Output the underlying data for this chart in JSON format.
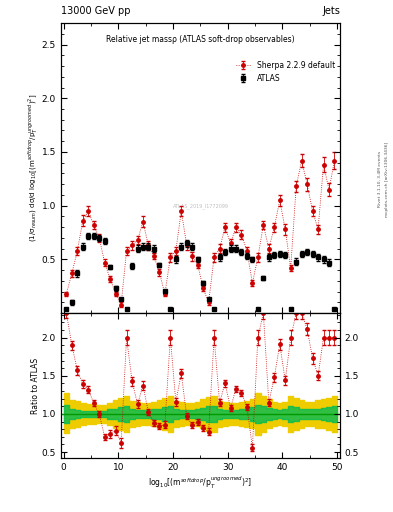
{
  "title_left": "13000 GeV pp",
  "title_right": "Jets",
  "plot_title": "Relative jet massρ (ATLAS soft-drop observables)",
  "ylabel_main": "(1/σ$_{resum}$) dσ/d log$_{10}$[(m$^{soft drop}$/p$_T^{ungroomed}$)$^2$]",
  "ylabel_ratio": "Ratio to ATLAS",
  "xlabel": "log$_{10}$[(m$^{soft drop}$/p$_T^{ungroomed}$)$^2$]",
  "right_label_top": "Rivet 3.1.10, 3.4M events",
  "right_label_bot": "mcplots.cern.ch [arXiv:1306.3436]",
  "watermark": "ATLAS_2019_I1772099",
  "legend_atlas": "ATLAS",
  "legend_sherpa": "Sherpa 2.2.9 default",
  "xlim": [
    -0.5,
    50.5
  ],
  "ylim_main": [
    0.0,
    2.7
  ],
  "ylim_ratio": [
    0.42,
    2.32
  ],
  "yticks_main": [
    0.5,
    1.0,
    1.5,
    2.0,
    2.5
  ],
  "yticks_ratio": [
    0.5,
    1.0,
    1.5,
    2.0
  ],
  "xticks": [
    0,
    10,
    20,
    30,
    40,
    50
  ],
  "atlas_x": [
    0.5,
    1.5,
    2.5,
    3.5,
    4.5,
    5.5,
    6.5,
    7.5,
    8.5,
    9.5,
    10.5,
    11.5,
    12.5,
    13.5,
    14.5,
    15.5,
    16.5,
    17.5,
    18.5,
    19.5,
    20.5,
    21.5,
    22.5,
    23.5,
    24.5,
    25.5,
    26.5,
    27.5,
    28.5,
    29.5,
    30.5,
    31.5,
    32.5,
    33.5,
    34.5,
    35.5,
    36.5,
    37.5,
    38.5,
    39.5,
    40.5,
    41.5,
    42.5,
    43.5,
    44.5,
    45.5,
    46.5,
    47.5,
    48.5,
    49.5
  ],
  "atlas_y": [
    0.04,
    0.1,
    0.37,
    0.62,
    0.72,
    0.72,
    0.7,
    0.67,
    0.43,
    0.23,
    0.13,
    0.04,
    0.44,
    0.6,
    0.62,
    0.62,
    0.6,
    0.45,
    0.21,
    0.04,
    0.5,
    0.62,
    0.65,
    0.62,
    0.5,
    0.28,
    0.13,
    0.04,
    0.52,
    0.57,
    0.6,
    0.6,
    0.57,
    0.53,
    0.5,
    0.04,
    0.33,
    0.52,
    0.54,
    0.55,
    0.54,
    0.04,
    0.48,
    0.55,
    0.57,
    0.55,
    0.52,
    0.5,
    0.47,
    0.04
  ],
  "atlas_yerr": [
    0.01,
    0.02,
    0.03,
    0.03,
    0.03,
    0.03,
    0.03,
    0.03,
    0.02,
    0.02,
    0.01,
    0.01,
    0.03,
    0.03,
    0.03,
    0.03,
    0.03,
    0.02,
    0.01,
    0.01,
    0.03,
    0.03,
    0.03,
    0.03,
    0.02,
    0.02,
    0.01,
    0.01,
    0.03,
    0.03,
    0.03,
    0.03,
    0.03,
    0.03,
    0.02,
    0.01,
    0.02,
    0.03,
    0.03,
    0.03,
    0.03,
    0.01,
    0.03,
    0.03,
    0.03,
    0.03,
    0.03,
    0.03,
    0.03,
    0.01
  ],
  "sherpa_x": [
    0.5,
    1.5,
    2.5,
    3.5,
    4.5,
    5.5,
    6.5,
    7.5,
    8.5,
    9.5,
    10.5,
    11.5,
    12.5,
    13.5,
    14.5,
    15.5,
    16.5,
    17.5,
    18.5,
    19.5,
    20.5,
    21.5,
    22.5,
    23.5,
    24.5,
    25.5,
    26.5,
    27.5,
    28.5,
    29.5,
    30.5,
    31.5,
    32.5,
    33.5,
    34.5,
    35.5,
    36.5,
    37.5,
    38.5,
    39.5,
    40.5,
    41.5,
    42.5,
    43.5,
    44.5,
    45.5,
    46.5,
    47.5,
    48.5,
    49.5
  ],
  "sherpa_y": [
    0.18,
    0.37,
    0.58,
    0.86,
    0.95,
    0.82,
    0.7,
    0.47,
    0.32,
    0.18,
    0.08,
    0.58,
    0.63,
    0.68,
    0.85,
    0.63,
    0.53,
    0.38,
    0.18,
    0.52,
    0.58,
    0.95,
    0.63,
    0.53,
    0.45,
    0.23,
    0.1,
    0.52,
    0.6,
    0.8,
    0.65,
    0.8,
    0.73,
    0.58,
    0.28,
    0.52,
    0.82,
    0.6,
    0.8,
    1.05,
    0.78,
    0.42,
    1.18,
    1.42,
    1.2,
    0.95,
    0.78,
    1.38,
    1.15,
    1.42
  ],
  "sherpa_yerr": [
    0.02,
    0.03,
    0.04,
    0.05,
    0.05,
    0.04,
    0.04,
    0.03,
    0.03,
    0.02,
    0.02,
    0.04,
    0.04,
    0.04,
    0.05,
    0.04,
    0.03,
    0.03,
    0.02,
    0.04,
    0.04,
    0.05,
    0.04,
    0.04,
    0.03,
    0.02,
    0.02,
    0.04,
    0.04,
    0.04,
    0.04,
    0.04,
    0.04,
    0.04,
    0.03,
    0.04,
    0.04,
    0.04,
    0.04,
    0.05,
    0.05,
    0.03,
    0.05,
    0.06,
    0.06,
    0.05,
    0.04,
    0.07,
    0.06,
    0.08
  ],
  "ratio_y": [
    2.5,
    1.9,
    1.57,
    1.39,
    1.32,
    1.14,
    1.0,
    0.7,
    0.74,
    0.78,
    0.62,
    2.0,
    1.43,
    1.13,
    1.37,
    1.02,
    0.88,
    0.84,
    0.86,
    2.0,
    1.16,
    1.53,
    0.97,
    0.85,
    0.9,
    0.82,
    0.77,
    2.0,
    1.15,
    1.4,
    1.08,
    1.33,
    1.28,
    1.09,
    0.56,
    2.0,
    2.48,
    1.15,
    1.48,
    1.91,
    1.44,
    2.0,
    2.46,
    2.58,
    2.11,
    1.73,
    1.5,
    2.0,
    2.0,
    2.0
  ],
  "ratio_yerr": [
    0.06,
    0.06,
    0.06,
    0.05,
    0.05,
    0.04,
    0.04,
    0.04,
    0.05,
    0.06,
    0.06,
    0.1,
    0.06,
    0.05,
    0.06,
    0.04,
    0.04,
    0.04,
    0.05,
    0.1,
    0.05,
    0.06,
    0.04,
    0.04,
    0.04,
    0.04,
    0.05,
    0.1,
    0.05,
    0.05,
    0.04,
    0.04,
    0.04,
    0.04,
    0.05,
    0.1,
    0.07,
    0.05,
    0.06,
    0.07,
    0.06,
    0.1,
    0.07,
    0.08,
    0.08,
    0.07,
    0.06,
    0.1,
    0.1,
    0.1
  ],
  "green_band_x": [
    0,
    1,
    2,
    3,
    4,
    5,
    6,
    7,
    8,
    9,
    10,
    11,
    12,
    13,
    14,
    15,
    16,
    17,
    18,
    19,
    20,
    21,
    22,
    23,
    24,
    25,
    26,
    27,
    28,
    29,
    30,
    31,
    32,
    33,
    34,
    35,
    36,
    37,
    38,
    39,
    40,
    41,
    42,
    43,
    44,
    45,
    46,
    47,
    48,
    49,
    50
  ],
  "green_lo": [
    0.88,
    0.94,
    0.95,
    0.96,
    0.96,
    0.96,
    0.96,
    0.96,
    0.94,
    0.93,
    0.91,
    0.9,
    0.94,
    0.95,
    0.95,
    0.95,
    0.94,
    0.93,
    0.91,
    0.9,
    0.94,
    0.95,
    0.95,
    0.95,
    0.94,
    0.92,
    0.9,
    0.9,
    0.94,
    0.95,
    0.95,
    0.95,
    0.94,
    0.93,
    0.91,
    0.88,
    0.9,
    0.92,
    0.94,
    0.95,
    0.94,
    0.9,
    0.91,
    0.93,
    0.94,
    0.94,
    0.93,
    0.92,
    0.91,
    0.9,
    0.9
  ],
  "green_hi": [
    1.12,
    1.06,
    1.05,
    1.04,
    1.04,
    1.04,
    1.04,
    1.04,
    1.06,
    1.07,
    1.09,
    1.1,
    1.06,
    1.05,
    1.05,
    1.05,
    1.06,
    1.07,
    1.09,
    1.1,
    1.06,
    1.05,
    1.05,
    1.05,
    1.06,
    1.08,
    1.1,
    1.1,
    1.06,
    1.05,
    1.05,
    1.05,
    1.06,
    1.07,
    1.09,
    1.12,
    1.1,
    1.08,
    1.06,
    1.05,
    1.06,
    1.1,
    1.09,
    1.07,
    1.06,
    1.06,
    1.07,
    1.08,
    1.09,
    1.1,
    1.1
  ],
  "yellow_lo": [
    0.75,
    0.82,
    0.83,
    0.86,
    0.87,
    0.87,
    0.88,
    0.88,
    0.85,
    0.82,
    0.79,
    0.76,
    0.83,
    0.84,
    0.86,
    0.86,
    0.84,
    0.82,
    0.79,
    0.76,
    0.83,
    0.84,
    0.86,
    0.86,
    0.84,
    0.81,
    0.78,
    0.76,
    0.83,
    0.84,
    0.86,
    0.86,
    0.84,
    0.83,
    0.81,
    0.73,
    0.77,
    0.81,
    0.84,
    0.86,
    0.84,
    0.76,
    0.79,
    0.82,
    0.84,
    0.84,
    0.82,
    0.81,
    0.79,
    0.76,
    0.76
  ],
  "yellow_hi": [
    1.28,
    1.18,
    1.17,
    1.14,
    1.13,
    1.13,
    1.12,
    1.12,
    1.15,
    1.18,
    1.21,
    1.24,
    1.17,
    1.16,
    1.14,
    1.14,
    1.16,
    1.18,
    1.21,
    1.24,
    1.17,
    1.16,
    1.14,
    1.14,
    1.16,
    1.19,
    1.22,
    1.24,
    1.17,
    1.16,
    1.14,
    1.14,
    1.16,
    1.17,
    1.19,
    1.27,
    1.23,
    1.19,
    1.16,
    1.14,
    1.16,
    1.24,
    1.21,
    1.18,
    1.16,
    1.16,
    1.18,
    1.19,
    1.21,
    1.24,
    1.24
  ],
  "color_atlas": "#000000",
  "color_sherpa": "#cc0000",
  "color_green": "#00bb55",
  "color_yellow": "#eecc00",
  "color_ratio_line": "#009900",
  "figsize": [
    3.93,
    5.12
  ],
  "dpi": 100
}
